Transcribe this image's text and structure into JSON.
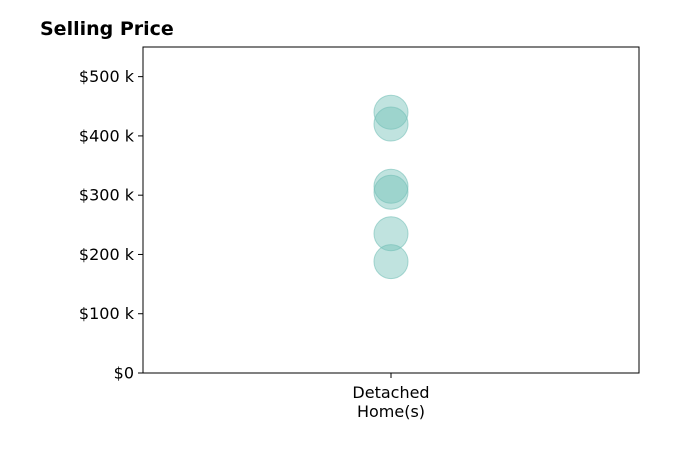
{
  "chart_data": {
    "type": "scatter",
    "title": "Selling Price",
    "xlabel": "",
    "ylabel": "",
    "categories": [
      "Detached\nHome(s)"
    ],
    "category_lines": [
      [
        "Detached",
        "Home(s)"
      ]
    ],
    "y_ticks": [
      0,
      100000,
      200000,
      300000,
      400000,
      500000
    ],
    "y_tick_labels": [
      "$0",
      "$100 k",
      "$200 k",
      "$300 k",
      "$400 k",
      "$500 k"
    ],
    "ylim": [
      0,
      550000
    ],
    "grid": false,
    "legend": "none",
    "series": [
      {
        "category": "Detached\nHome(s)",
        "values": [
          440000,
          420000,
          315000,
          305000,
          235000,
          188000
        ]
      }
    ],
    "marker_color": "#74c0b8",
    "marker_alpha": 0.45
  }
}
